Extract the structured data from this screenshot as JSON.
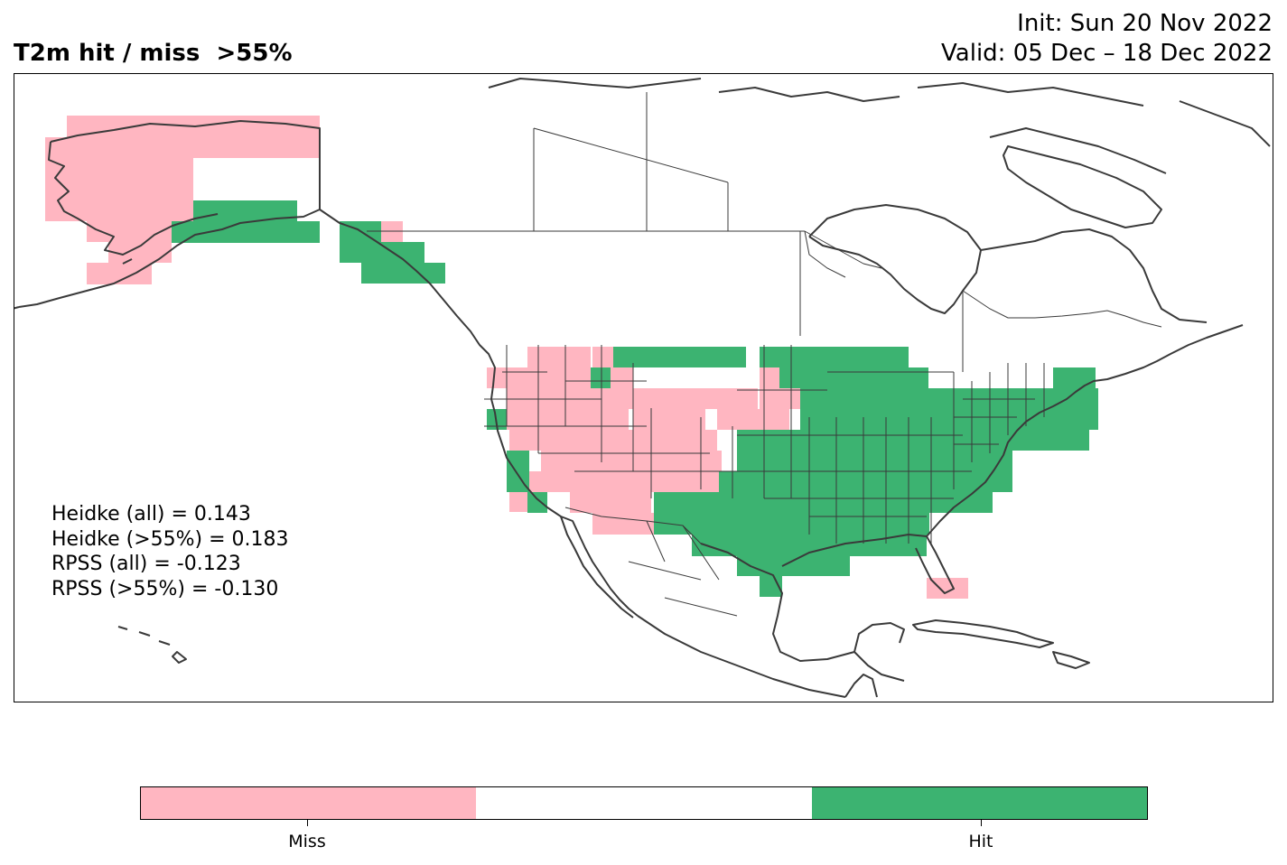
{
  "title": {
    "main": "T2m hit / miss  >55%",
    "init": "Init: Sun 20 Nov 2022",
    "valid": "Valid: 05 Dec – 18 Dec 2022"
  },
  "scores": {
    "heidke_all": "Heidke (all) = 0.143",
    "heidke_55": "Heidke (>55%) = 0.183",
    "rpss_all": "RPSS (all) = -0.123",
    "rpss_55": "RPSS (>55%) = -0.130"
  },
  "colorbar": {
    "segments": [
      {
        "label": "Miss",
        "color": "#ffb6c1"
      },
      {
        "label": "",
        "color": "#ffffff"
      },
      {
        "label": "Hit",
        "color": "#3cb371"
      }
    ],
    "tick_labels": [
      "Miss",
      "Hit"
    ]
  },
  "colors": {
    "miss": "#ffb6c1",
    "hit": "#3cb371",
    "coast": "#3a3a3a"
  }
}
